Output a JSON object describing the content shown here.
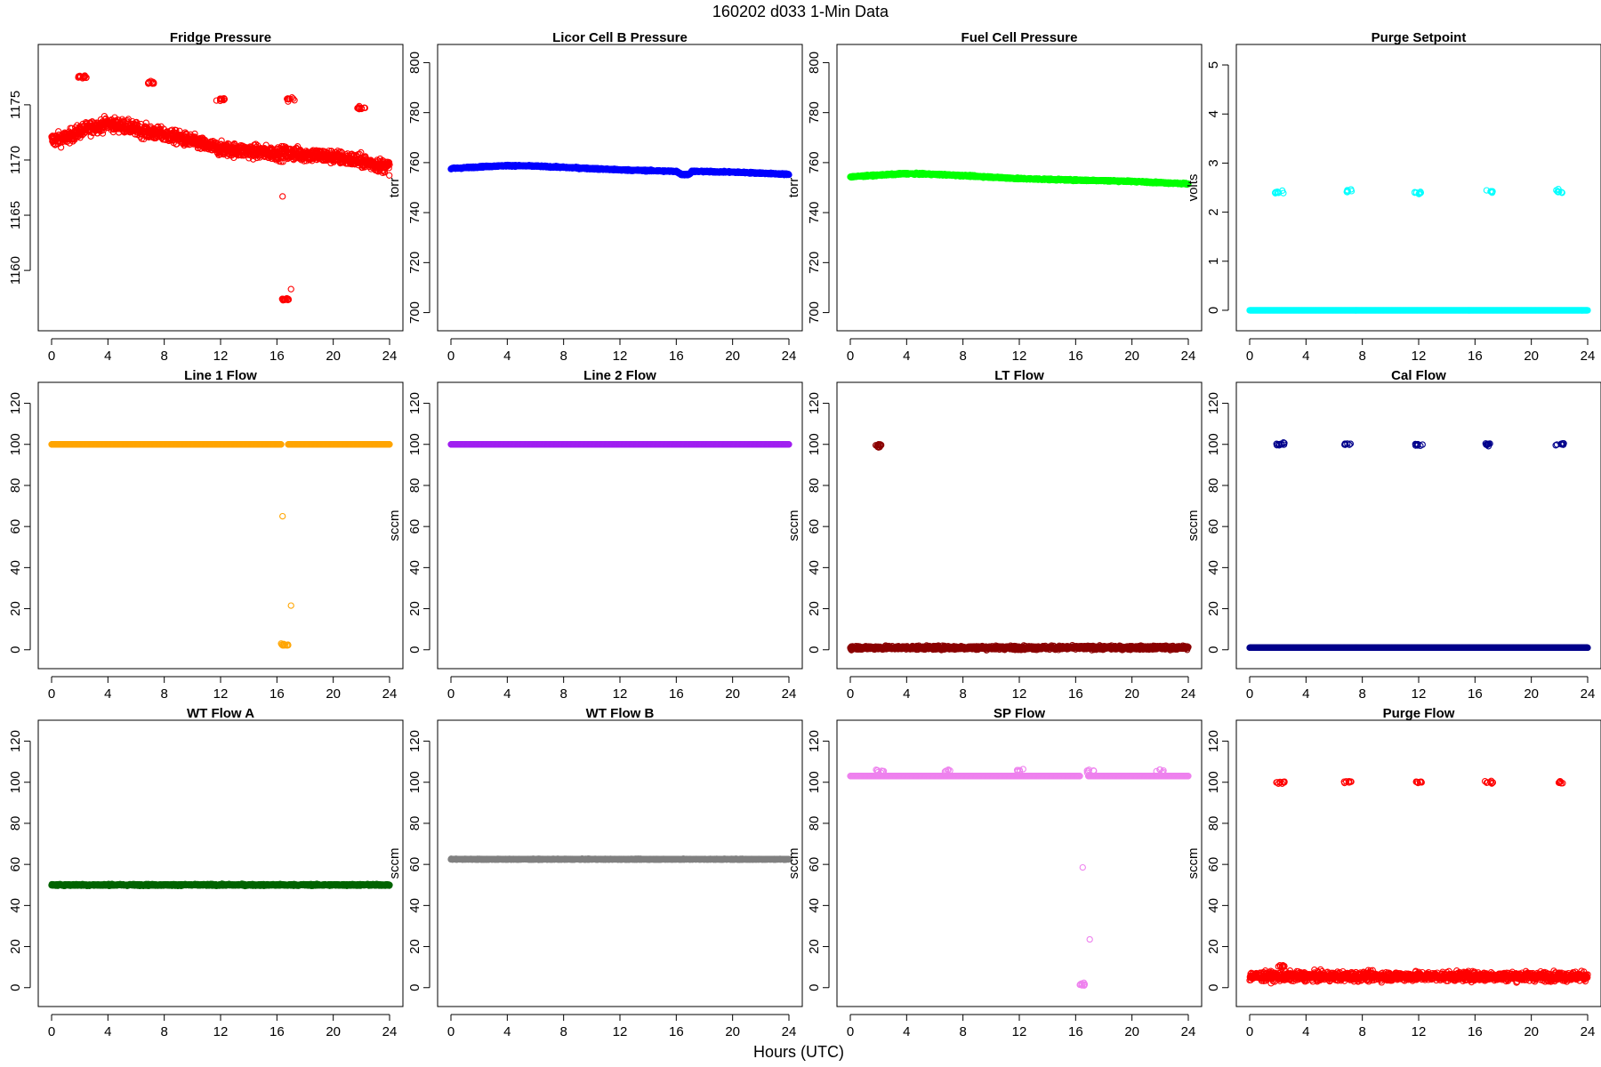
{
  "figure": {
    "title": "160202    d033    1-Min Data",
    "xlabel": "Hours (UTC)"
  },
  "chart_data": [
    {
      "type": "scatter",
      "title": "Fridge Pressure",
      "ylabel": "torr",
      "color": "#ff0000",
      "xlim": [
        0,
        24
      ],
      "ylim": [
        1155.5,
        1179.5
      ],
      "yticks": [
        1160,
        1165,
        1170,
        1175
      ],
      "xticks": [
        0,
        4,
        8,
        12,
        16,
        20,
        24
      ],
      "baseline": [
        [
          0,
          1171.8
        ],
        [
          1,
          1172
        ],
        [
          2,
          1172.6
        ],
        [
          3,
          1173
        ],
        [
          4,
          1173.3
        ],
        [
          5,
          1173.1
        ],
        [
          6,
          1172.8
        ],
        [
          7,
          1172.5
        ],
        [
          8,
          1172.3
        ],
        [
          9,
          1172
        ],
        [
          10,
          1171.7
        ],
        [
          11,
          1171.3
        ],
        [
          12,
          1171
        ],
        [
          13,
          1170.9
        ],
        [
          14,
          1170.8
        ],
        [
          15,
          1170.7
        ],
        [
          16,
          1170.6
        ],
        [
          17,
          1170.6
        ],
        [
          18,
          1170.5
        ],
        [
          19,
          1170.4
        ],
        [
          20,
          1170.3
        ],
        [
          21,
          1170.1
        ],
        [
          22,
          1169.9
        ],
        [
          23,
          1169.6
        ],
        [
          24,
          1169.4
        ]
      ],
      "noise": 0.6,
      "clusters": [
        {
          "x": 2.2,
          "y": 1177.5,
          "n": 14
        },
        {
          "x": 7,
          "y": 1177,
          "n": 10
        },
        {
          "x": 12,
          "y": 1175.5,
          "n": 10
        },
        {
          "x": 17,
          "y": 1175.5,
          "n": 10
        },
        {
          "x": 22,
          "y": 1174.7,
          "n": 10
        },
        {
          "x": 16.6,
          "y": 1157.4,
          "n": 14
        }
      ],
      "outliers": [
        [
          16.4,
          1166.7
        ],
        [
          17,
          1158.3
        ]
      ]
    },
    {
      "type": "scatter",
      "title": "Licor Cell B Pressure",
      "ylabel": "torr",
      "color": "#0000ff",
      "xlim": [
        0,
        24
      ],
      "ylim": [
        697,
        803
      ],
      "yticks": [
        700,
        720,
        740,
        760,
        780,
        800
      ],
      "xticks": [
        0,
        4,
        8,
        12,
        16,
        20,
        24
      ],
      "baseline": [
        [
          0,
          757.6
        ],
        [
          2,
          758.3
        ],
        [
          4,
          758.8
        ],
        [
          6,
          758.6
        ],
        [
          8,
          758.1
        ],
        [
          10,
          757.6
        ],
        [
          12,
          757.1
        ],
        [
          14,
          756.8
        ],
        [
          16,
          756.5
        ],
        [
          16.4,
          755.2
        ],
        [
          16.9,
          755.2
        ],
        [
          17.1,
          756.5
        ],
        [
          20,
          756.2
        ],
        [
          22,
          755.8
        ],
        [
          24,
          755.3
        ]
      ],
      "noise": 0.3,
      "clusters": [],
      "outliers": []
    },
    {
      "type": "scatter",
      "title": "Fuel Cell Pressure",
      "ylabel": "torr",
      "color": "#00ff00",
      "xlim": [
        0,
        24
      ],
      "ylim": [
        697,
        803
      ],
      "yticks": [
        700,
        720,
        740,
        760,
        780,
        800
      ],
      "xticks": [
        0,
        4,
        8,
        12,
        16,
        20,
        24
      ],
      "baseline": [
        [
          0,
          754.3
        ],
        [
          2,
          755
        ],
        [
          4,
          755.6
        ],
        [
          6,
          755.3
        ],
        [
          8,
          754.8
        ],
        [
          10,
          754.2
        ],
        [
          12,
          753.6
        ],
        [
          14,
          753.3
        ],
        [
          16,
          753
        ],
        [
          18,
          752.8
        ],
        [
          20,
          752.5
        ],
        [
          22,
          752
        ],
        [
          24,
          751.5
        ]
      ],
      "noise": 0.3,
      "clusters": [],
      "outliers": []
    },
    {
      "type": "scatter",
      "title": "Purge Setpoint",
      "ylabel": "volts",
      "color": "#00ffff",
      "xlim": [
        0,
        24
      ],
      "ylim": [
        -0.2,
        5.2
      ],
      "yticks": [
        0,
        1,
        2,
        3,
        4,
        5
      ],
      "xticks": [
        0,
        4,
        8,
        12,
        16,
        20,
        24
      ],
      "baseline": [
        [
          0,
          0
        ],
        [
          24,
          0
        ]
      ],
      "noise": 0,
      "clusters": [
        {
          "x": 2.1,
          "y": 2.4,
          "n": 10
        },
        {
          "x": 7,
          "y": 2.42,
          "n": 6
        },
        {
          "x": 12,
          "y": 2.4,
          "n": 8
        },
        {
          "x": 17,
          "y": 2.42,
          "n": 6
        },
        {
          "x": 22,
          "y": 2.42,
          "n": 8
        }
      ],
      "outliers": []
    },
    {
      "type": "scatter",
      "title": "Line 1 Flow",
      "ylabel": "sccm",
      "color": "#ffa500",
      "xlim": [
        0,
        24
      ],
      "ylim": [
        -4,
        125
      ],
      "yticks": [
        0,
        20,
        40,
        60,
        80,
        100,
        120
      ],
      "xticks": [
        0,
        4,
        8,
        12,
        16,
        20,
        24
      ],
      "baseline": [
        [
          0,
          100
        ],
        [
          16.3,
          100
        ]
      ],
      "baseline2": [
        [
          16.8,
          100
        ],
        [
          24,
          100
        ]
      ],
      "noise": 0,
      "clusters": [
        {
          "x": 16.6,
          "y": 2.5,
          "n": 10
        }
      ],
      "outliers": [
        [
          16.4,
          65
        ],
        [
          17,
          21.5
        ]
      ]
    },
    {
      "type": "scatter",
      "title": "Line 2 Flow",
      "ylabel": "sccm",
      "color": "#a020f0",
      "xlim": [
        0,
        24
      ],
      "ylim": [
        -4,
        125
      ],
      "yticks": [
        0,
        20,
        40,
        60,
        80,
        100,
        120
      ],
      "xticks": [
        0,
        4,
        8,
        12,
        16,
        20,
        24
      ],
      "baseline": [
        [
          0,
          100
        ],
        [
          24,
          100
        ]
      ],
      "noise": 0,
      "clusters": [],
      "outliers": []
    },
    {
      "type": "scatter",
      "title": "LT Flow",
      "ylabel": "sccm",
      "color": "#8b0000",
      "xlim": [
        0,
        24
      ],
      "ylim": [
        -4,
        125
      ],
      "yticks": [
        0,
        20,
        40,
        60,
        80,
        100,
        120
      ],
      "xticks": [
        0,
        4,
        8,
        12,
        16,
        20,
        24
      ],
      "baseline": [
        [
          0,
          1
        ],
        [
          24,
          1
        ]
      ],
      "noise": 0.9,
      "clusters": [
        {
          "x": 2.1,
          "y": 99.5,
          "n": 14
        }
      ],
      "outliers": []
    },
    {
      "type": "scatter",
      "title": "Cal Flow",
      "ylabel": "sccm",
      "color": "#00008b",
      "xlim": [
        0,
        24
      ],
      "ylim": [
        -4,
        125
      ],
      "yticks": [
        0,
        20,
        40,
        60,
        80,
        100,
        120
      ],
      "xticks": [
        0,
        4,
        8,
        12,
        16,
        20,
        24
      ],
      "baseline": [
        [
          0,
          1
        ],
        [
          24,
          1
        ]
      ],
      "noise": 0,
      "clusters": [
        {
          "x": 2.2,
          "y": 100,
          "n": 10
        },
        {
          "x": 7,
          "y": 100,
          "n": 8
        },
        {
          "x": 12,
          "y": 100,
          "n": 8
        },
        {
          "x": 17,
          "y": 100,
          "n": 8
        },
        {
          "x": 22,
          "y": 100,
          "n": 8
        }
      ],
      "outliers": []
    },
    {
      "type": "scatter",
      "title": "WT Flow A",
      "ylabel": "sccm",
      "color": "#006400",
      "xlim": [
        0,
        24
      ],
      "ylim": [
        -4,
        125
      ],
      "yticks": [
        0,
        20,
        40,
        60,
        80,
        100,
        120
      ],
      "xticks": [
        0,
        4,
        8,
        12,
        16,
        20,
        24
      ],
      "baseline": [
        [
          0,
          50
        ],
        [
          24,
          50
        ]
      ],
      "noise": 0.4,
      "clusters": [],
      "outliers": []
    },
    {
      "type": "scatter",
      "title": "WT Flow B",
      "ylabel": "sccm",
      "color": "#808080",
      "xlim": [
        0,
        24
      ],
      "ylim": [
        -4,
        125
      ],
      "yticks": [
        0,
        20,
        40,
        60,
        80,
        100,
        120
      ],
      "xticks": [
        0,
        4,
        8,
        12,
        16,
        20,
        24
      ],
      "baseline": [
        [
          0,
          62.5
        ],
        [
          24,
          62.5
        ]
      ],
      "noise": 0.2,
      "clusters": [],
      "outliers": []
    },
    {
      "type": "scatter",
      "title": "SP Flow",
      "ylabel": "sccm",
      "color": "#ee82ee",
      "xlim": [
        0,
        24
      ],
      "ylim": [
        -4,
        125
      ],
      "yticks": [
        0,
        20,
        40,
        60,
        80,
        100,
        120
      ],
      "xticks": [
        0,
        4,
        8,
        12,
        16,
        20,
        24
      ],
      "baseline": [
        [
          0,
          103
        ],
        [
          16.3,
          103
        ]
      ],
      "baseline2": [
        [
          16.9,
          103
        ],
        [
          24,
          103
        ]
      ],
      "noise": 0,
      "clusters": [
        {
          "x": 2.1,
          "y": 105.5,
          "n": 8
        },
        {
          "x": 7,
          "y": 105.5,
          "n": 6
        },
        {
          "x": 12,
          "y": 105.5,
          "n": 6
        },
        {
          "x": 17,
          "y": 105.5,
          "n": 6
        },
        {
          "x": 22,
          "y": 105.5,
          "n": 6
        },
        {
          "x": 16.6,
          "y": 1.5,
          "n": 10
        }
      ],
      "outliers": [
        [
          16.5,
          58.5
        ],
        [
          17,
          23.5
        ]
      ]
    },
    {
      "type": "scatter",
      "title": "Purge Flow",
      "ylabel": "sccm",
      "color": "#ff0000",
      "xlim": [
        0,
        24
      ],
      "ylim": [
        -4,
        125
      ],
      "yticks": [
        0,
        20,
        40,
        60,
        80,
        100,
        120
      ],
      "xticks": [
        0,
        4,
        8,
        12,
        16,
        20,
        24
      ],
      "baseline": [
        [
          0,
          5.5
        ],
        [
          24,
          5.5
        ]
      ],
      "noise": 2.2,
      "clusters": [
        {
          "x": 2.2,
          "y": 100,
          "n": 10
        },
        {
          "x": 7,
          "y": 100,
          "n": 8
        },
        {
          "x": 12,
          "y": 100,
          "n": 8
        },
        {
          "x": 17,
          "y": 100,
          "n": 8
        },
        {
          "x": 22,
          "y": 100,
          "n": 8
        },
        {
          "x": 2.2,
          "y": 10.5,
          "n": 8
        }
      ],
      "outliers": []
    }
  ]
}
